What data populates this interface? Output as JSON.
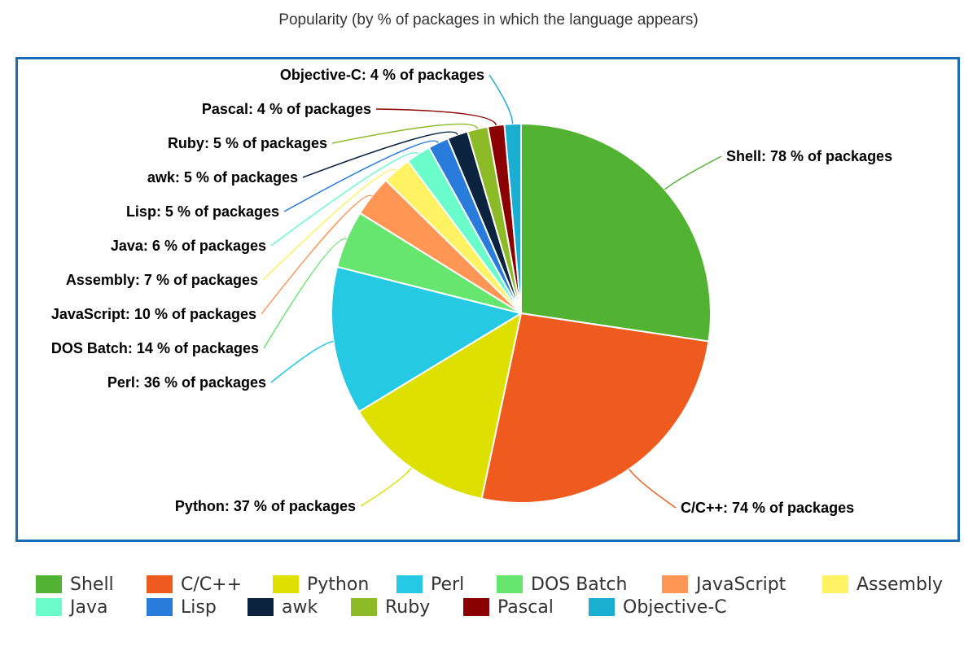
{
  "chart_data": {
    "type": "pie",
    "title": "Popularity (by % of packages in which the language appears)",
    "unit_suffix": " % of packages",
    "slices": [
      {
        "name": "Shell",
        "value": 78,
        "color": "#52b333"
      },
      {
        "name": "C/C++",
        "value": 74,
        "color": "#ef5a1e"
      },
      {
        "name": "Python",
        "value": 37,
        "color": "#dde000"
      },
      {
        "name": "Perl",
        "value": 36,
        "color": "#25c9e4"
      },
      {
        "name": "DOS Batch",
        "value": 14,
        "color": "#66e66e"
      },
      {
        "name": "JavaScript",
        "value": 10,
        "color": "#ff9656"
      },
      {
        "name": "Assembly",
        "value": 7,
        "color": "#fff263"
      },
      {
        "name": "Java",
        "value": 6,
        "color": "#6afccb"
      },
      {
        "name": "Lisp",
        "value": 5,
        "color": "#2a7cdc"
      },
      {
        "name": "awk",
        "value": 5,
        "color": "#0c2340"
      },
      {
        "name": "Ruby",
        "value": 5,
        "color": "#8cbb27"
      },
      {
        "name": "Pascal",
        "value": 4,
        "color": "#8b0000"
      },
      {
        "name": "Objective-C",
        "value": 4,
        "color": "#1aaed0"
      }
    ],
    "legend_position": "bottom"
  }
}
